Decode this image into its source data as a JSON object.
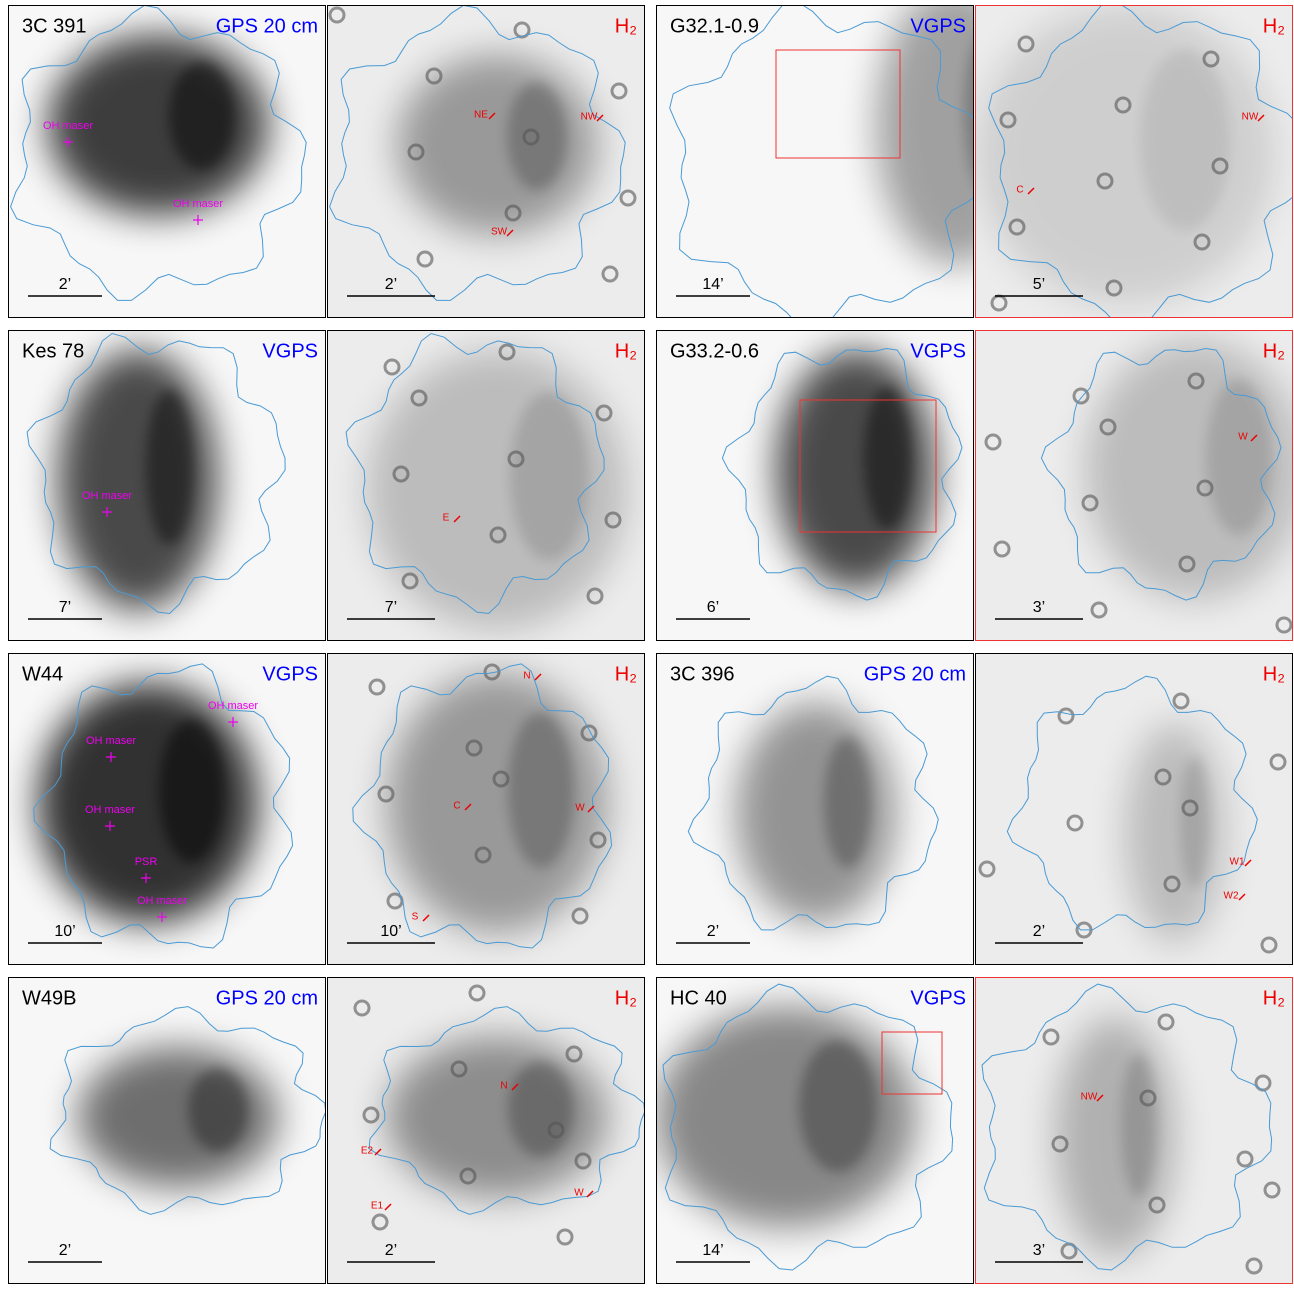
{
  "panels": [
    {
      "radio": {
        "name": "3C 391",
        "band": "GPS 20 cm",
        "scale": "2’",
        "labels": [
          "OH maser",
          "OH maser"
        ]
      },
      "h2": {
        "band": "H₂",
        "scale": "2’",
        "labels": [
          "NE",
          "NW",
          "SW"
        ]
      }
    },
    {
      "radio": {
        "name": "G32.1-0.9",
        "band": "VGPS",
        "scale": "14’",
        "labels": []
      },
      "h2": {
        "band": "H₂",
        "scale": "5’",
        "labels": [
          "NW",
          "C"
        ]
      }
    },
    {
      "radio": {
        "name": "Kes 78",
        "band": "VGPS",
        "scale": "7’",
        "labels": [
          "OH maser"
        ]
      },
      "h2": {
        "band": "H₂",
        "scale": "7’",
        "labels": [
          "E"
        ]
      }
    },
    {
      "radio": {
        "name": "G33.2-0.6",
        "band": "VGPS",
        "scale": "6’",
        "labels": []
      },
      "h2": {
        "band": "H₂",
        "scale": "3’",
        "labels": [
          "W"
        ]
      }
    },
    {
      "radio": {
        "name": "W44",
        "band": "VGPS",
        "scale": "10’",
        "labels": [
          "OH maser",
          "OH maser",
          "OH maser",
          "PSR",
          "OH maser"
        ]
      },
      "h2": {
        "band": "H₂",
        "scale": "10’",
        "labels": [
          "N",
          "C",
          "W",
          "S"
        ]
      }
    },
    {
      "radio": {
        "name": "3C 396",
        "band": "GPS 20 cm",
        "scale": "2’",
        "labels": []
      },
      "h2": {
        "band": "H₂",
        "scale": "2’",
        "labels": [
          "W1",
          "W2"
        ]
      }
    },
    {
      "radio": {
        "name": "W49B",
        "band": "GPS 20 cm",
        "scale": "2’",
        "labels": []
      },
      "h2": {
        "band": "H₂",
        "scale": "2’",
        "labels": [
          "N",
          "E2",
          "E1",
          "W"
        ]
      }
    },
    {
      "radio": {
        "name": "HC 40",
        "band": "VGPS",
        "scale": "14’",
        "labels": []
      },
      "h2": {
        "band": "H₂",
        "scale": "3’",
        "labels": [
          "NW"
        ]
      }
    }
  ]
}
